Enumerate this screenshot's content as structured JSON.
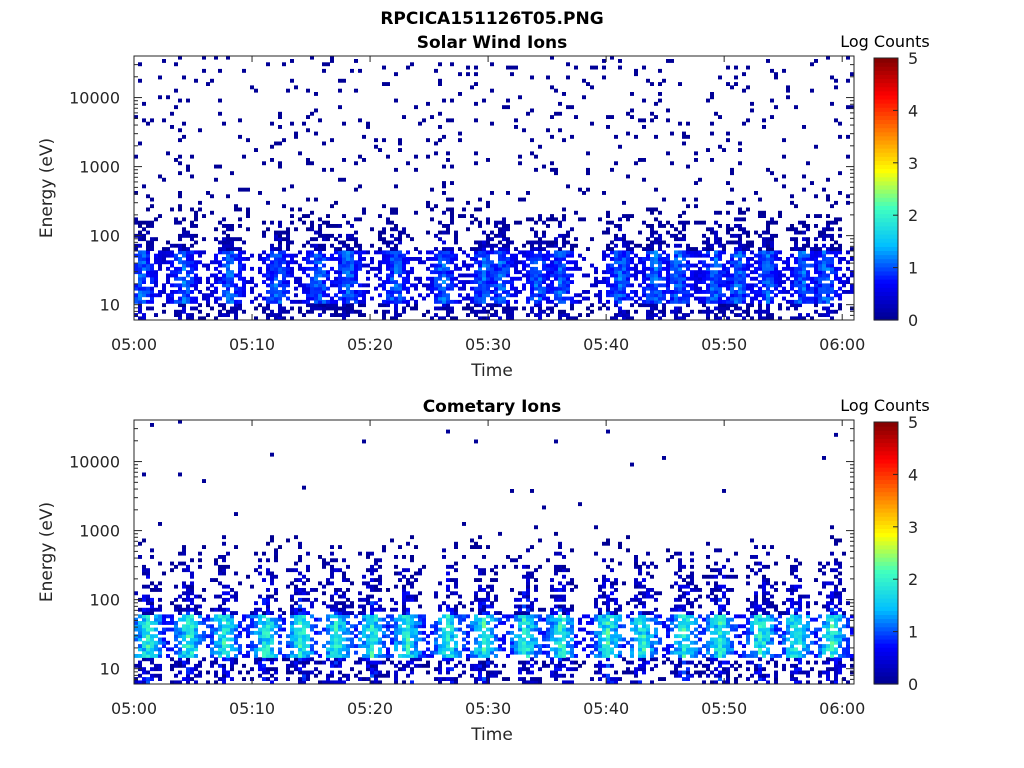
{
  "figure_title": "RPCICA151126T05.PNG",
  "colormap_stops": [
    "#00008f",
    "#0000ff",
    "#00bfff",
    "#40ffbf",
    "#ffff00",
    "#ff8000",
    "#ff0000",
    "#800000"
  ],
  "chart_data": [
    {
      "type": "heatmap",
      "title": "Solar Wind Ions",
      "xlabel": "Time",
      "ylabel": "Energy (eV)",
      "yscale": "log",
      "ylim": [
        6,
        40000
      ],
      "xlim": [
        "05:00",
        "06:01"
      ],
      "x_tick_labels": [
        "05:00",
        "05:10",
        "05:20",
        "05:30",
        "05:40",
        "05:50",
        "06:00"
      ],
      "y_tick_values": [
        10,
        100,
        1000,
        10000
      ],
      "y_tick_labels": [
        "10",
        "100",
        "1000",
        "10000"
      ],
      "colorbar": {
        "label": "Log Counts",
        "range": [
          0,
          5
        ],
        "tick_labels": [
          "0",
          "1",
          "2",
          "3",
          "4",
          "5"
        ]
      },
      "core_band_eV": [
        10,
        60
      ],
      "peak_log_counts": 1.2,
      "burst_minutes": [
        0.5,
        4,
        8,
        12,
        15.5,
        18,
        22,
        26,
        29.5,
        31,
        34,
        36,
        41,
        44,
        46,
        49,
        51,
        53.5,
        56.5,
        58.5
      ],
      "scattered_counts_eV": [
        100,
        30000
      ],
      "grid": false
    },
    {
      "type": "heatmap",
      "title": "Cometary Ions",
      "xlabel": "Time",
      "ylabel": "Energy (eV)",
      "yscale": "log",
      "ylim": [
        6,
        40000
      ],
      "xlim": [
        "05:00",
        "06:01"
      ],
      "x_tick_labels": [
        "05:00",
        "05:10",
        "05:20",
        "05:30",
        "05:40",
        "05:50",
        "06:00"
      ],
      "y_tick_values": [
        10,
        100,
        1000,
        10000
      ],
      "y_tick_labels": [
        "10",
        "100",
        "1000",
        "10000"
      ],
      "colorbar": {
        "label": "Log Counts",
        "range": [
          0,
          5
        ],
        "tick_labels": [
          "0",
          "1",
          "2",
          "3",
          "4",
          "5"
        ]
      },
      "core_band_eV": [
        15,
        60
      ],
      "peak_log_counts": 2.2,
      "burst_minutes": [
        1,
        4.5,
        7.5,
        11,
        14,
        17,
        20,
        23,
        26.5,
        29.5,
        33,
        36,
        40,
        43,
        46.5,
        49.5,
        53,
        56,
        59
      ],
      "sparse_high_energy_eV": [
        1000,
        30000
      ],
      "grid": false
    }
  ]
}
